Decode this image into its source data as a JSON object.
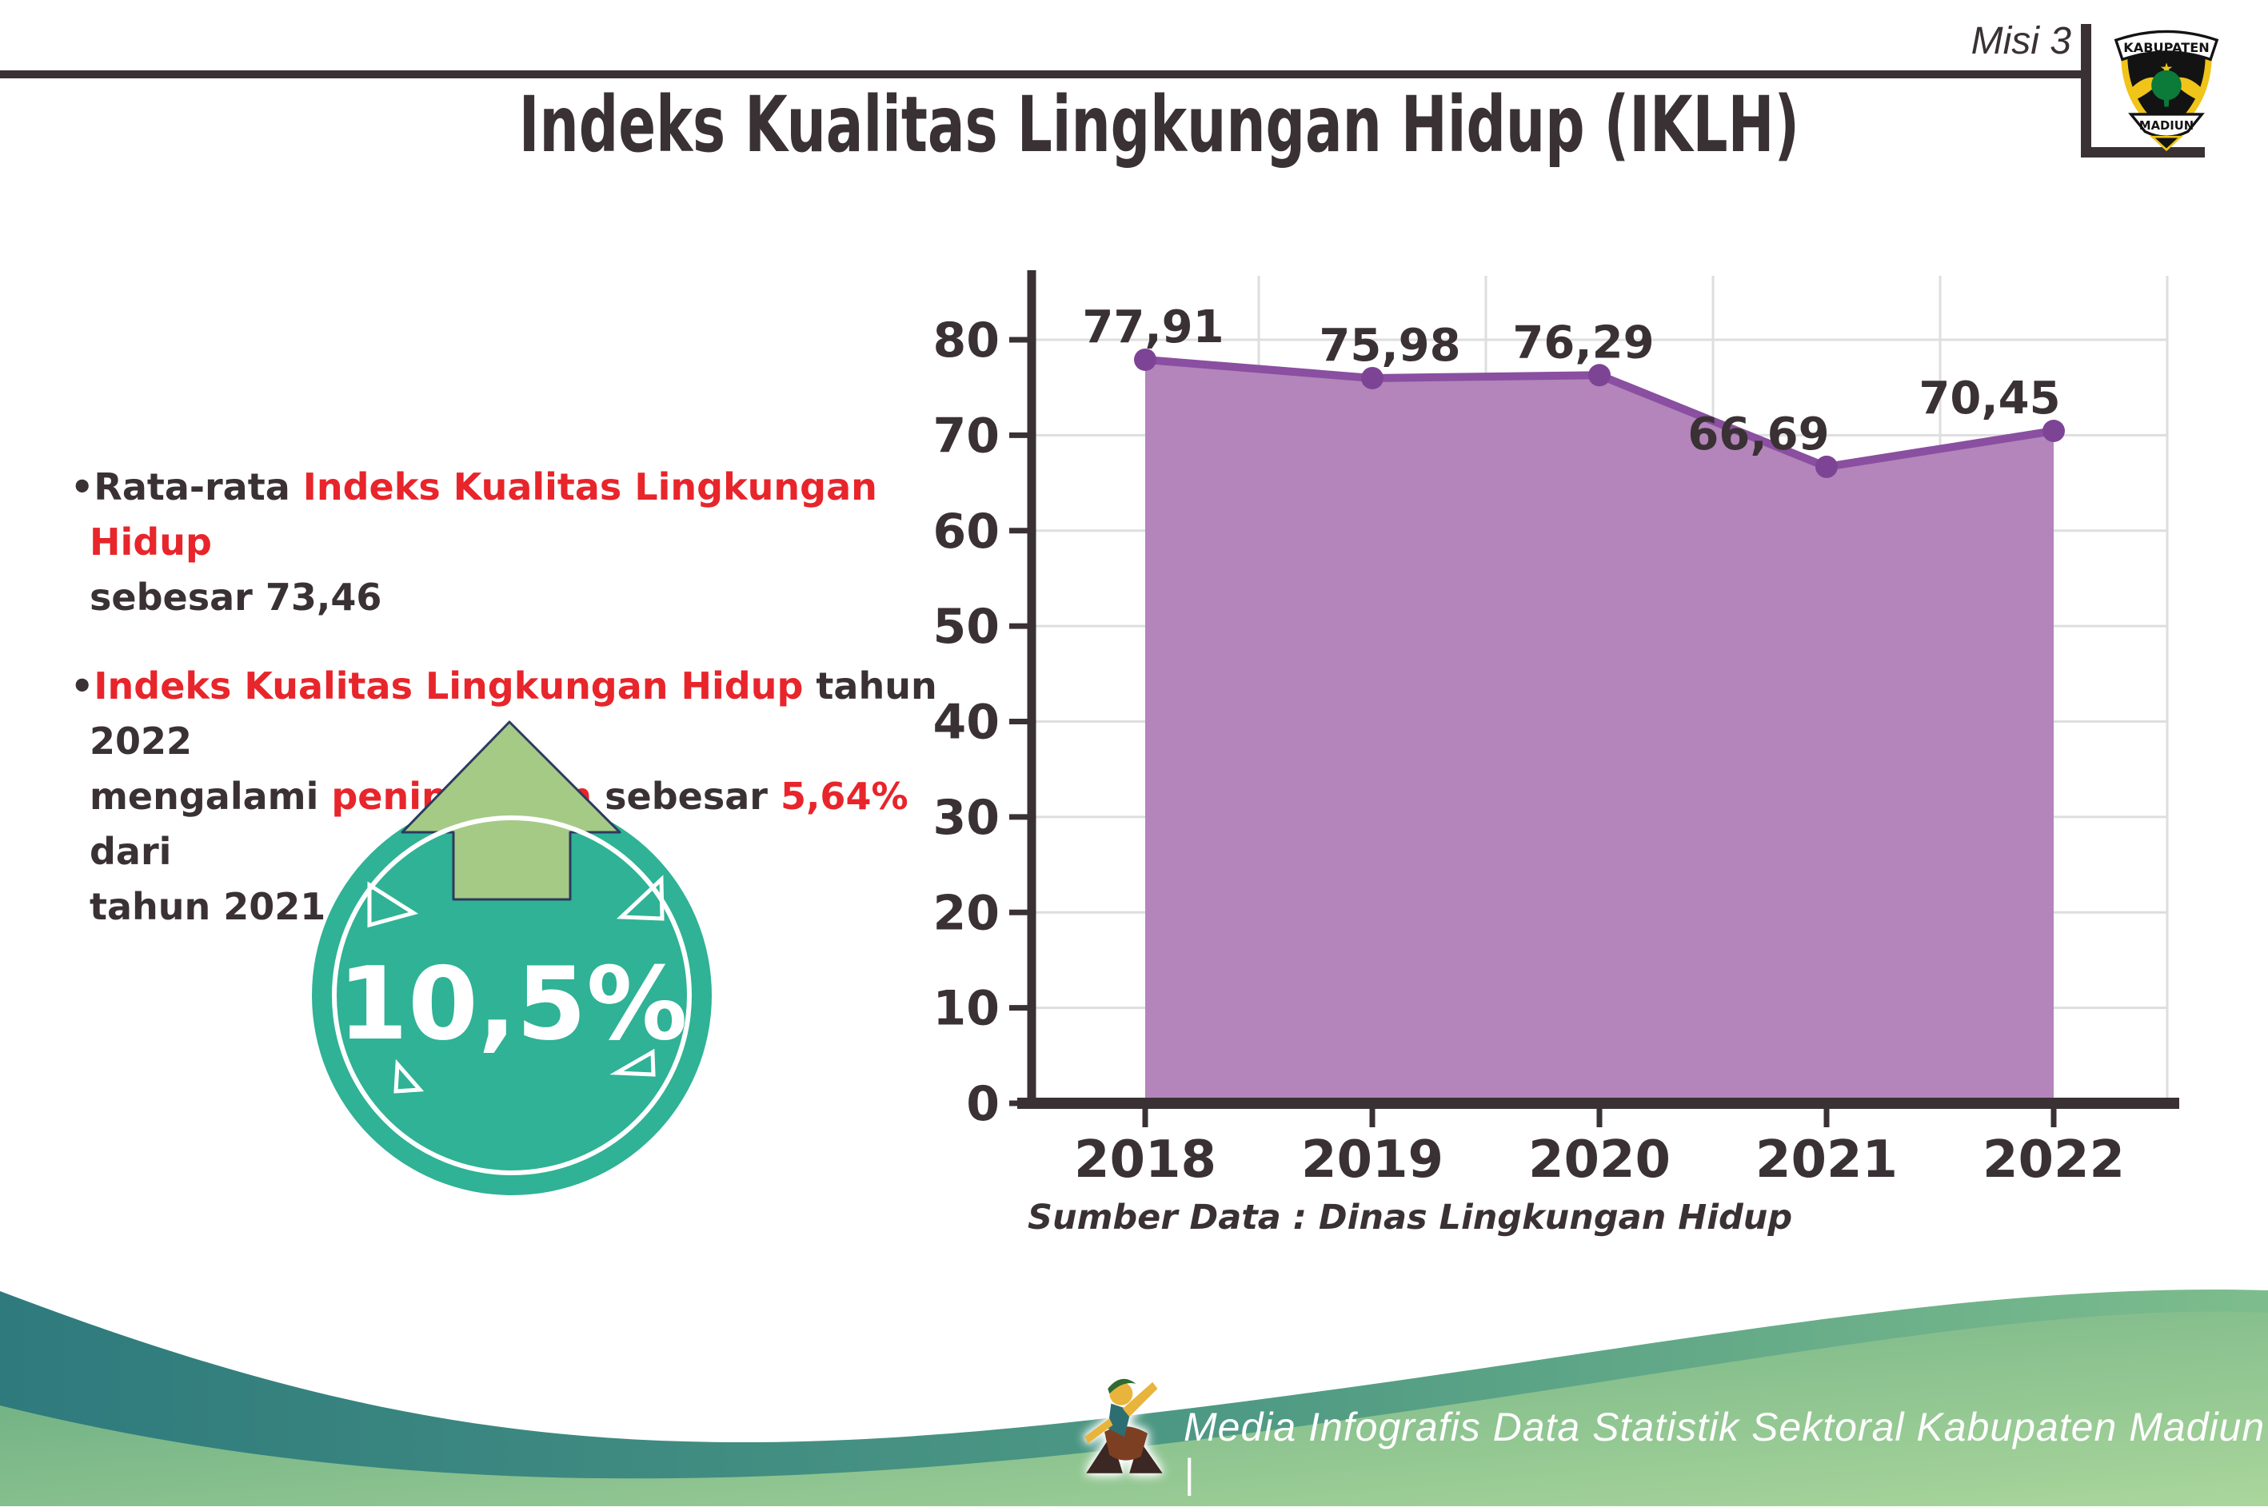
{
  "header": {
    "misi_label": "Misi 3",
    "logo": {
      "top_text": "KABUPATEN",
      "bottom_text": "MADIUN"
    }
  },
  "title": "Indeks Kualitas Lingkungan Hidup (IKLH)",
  "bullet1": {
    "bullet": "•",
    "s1": "Rata-rata ",
    "s2": "Indeks Kualitas Lingkungan Hidup",
    "s3": "sebesar 73,46"
  },
  "bullet2": {
    "bullet": "•",
    "s1": "Indeks Kualitas Lingkungan Hidup",
    "s2": " tahun 2022",
    "s3": "mengalami ",
    "s4": "peningkatan",
    "s5": " sebesar ",
    "s6": "5,64%",
    "s7": " dari",
    "s8": "tahun 2021"
  },
  "badge": {
    "value": "10,5%"
  },
  "chart_data": {
    "type": "area",
    "title": "",
    "categories": [
      "2018",
      "2019",
      "2020",
      "2021",
      "2022"
    ],
    "values": [
      77.91,
      75.98,
      76.29,
      66.69,
      70.45
    ],
    "value_labels": [
      "77,91",
      "75,98",
      "76,29",
      "66,69",
      "70,45"
    ],
    "y_ticks": [
      0,
      10,
      20,
      30,
      40,
      50,
      60,
      70,
      80
    ],
    "ylim": [
      0,
      85
    ],
    "grid": true,
    "legend": "none",
    "area_color": "#b385bb",
    "line_color": "#8a4fa0",
    "marker_color": "#7d4496",
    "axis_color": "#3a3134",
    "grid_color": "#dedede",
    "label_color": "#3a3134"
  },
  "source_note": "Sumber Data : Dinas Lingkungan Hidup",
  "footer": {
    "text": "Media Infografis Data Statistik Sektoral Kabupaten Madiun |"
  },
  "colors": {
    "dark_text": "#3a3134",
    "accent_red": "#e7252b",
    "badge_teal": "#2fb295",
    "badge_arrow_green": "#a5ca85",
    "footer_teal": "#2e7a7d",
    "footer_green_light": "#abd79c"
  }
}
